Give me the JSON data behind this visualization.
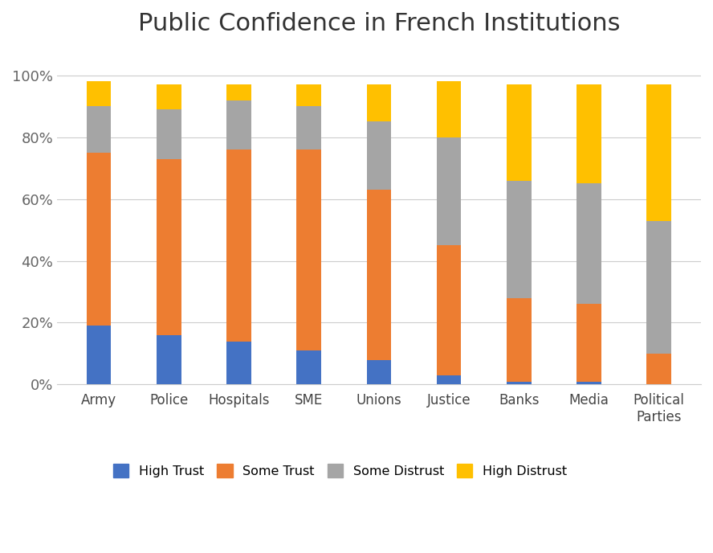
{
  "categories": [
    "Army",
    "Police",
    "Hospitals",
    "SME",
    "Unions",
    "Justice",
    "Banks",
    "Media",
    "Political\nParties"
  ],
  "high_trust": [
    19,
    16,
    14,
    11,
    8,
    3,
    1,
    1,
    0
  ],
  "some_trust": [
    56,
    57,
    62,
    65,
    55,
    42,
    27,
    25,
    10
  ],
  "some_distrust": [
    15,
    16,
    16,
    14,
    22,
    35,
    38,
    39,
    43
  ],
  "high_distrust": [
    8,
    8,
    5,
    7,
    12,
    18,
    31,
    32,
    44
  ],
  "colors": {
    "high_trust": "#4472C4",
    "some_trust": "#ED7D31",
    "some_distrust": "#A5A5A5",
    "high_distrust": "#FFC000"
  },
  "title": "Public Confidence in French Institutions",
  "title_fontsize": 22,
  "ylabel_ticks": [
    "0%",
    "20%",
    "40%",
    "60%",
    "80%",
    "100%"
  ],
  "ytick_vals": [
    0,
    20,
    40,
    60,
    80,
    100
  ],
  "legend_labels": [
    "High Trust",
    "Some Trust",
    "Some Distrust",
    "High Distrust"
  ],
  "background_color": "#FFFFFF",
  "bar_width": 0.35
}
